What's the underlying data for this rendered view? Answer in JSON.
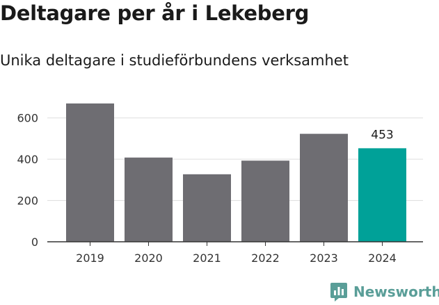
{
  "header": {
    "title": "Deltagare per år i Lekeberg",
    "subtitle": "Unika deltagare i studieförbundens verksamhet"
  },
  "brand": {
    "name": "Newsworthy",
    "icon": "newsworthy-logo-icon",
    "color": "#5a9e98"
  },
  "chart_data": {
    "type": "bar",
    "title": "Deltagare per år i Lekeberg",
    "subtitle": "Unika deltagare i studieförbundens verksamhet",
    "xlabel": "",
    "ylabel": "",
    "categories": [
      "2019",
      "2020",
      "2021",
      "2022",
      "2023",
      "2024"
    ],
    "values": [
      670,
      408,
      327,
      393,
      523,
      453
    ],
    "ylim": [
      0,
      700
    ],
    "yticks": [
      0,
      200,
      400,
      600
    ],
    "grid": true,
    "labeled_points": [
      {
        "category": "2024",
        "label": "453"
      }
    ],
    "colors": {
      "default": "#6e6d72",
      "highlight": "#00a198",
      "highlight_category": "2024"
    }
  }
}
